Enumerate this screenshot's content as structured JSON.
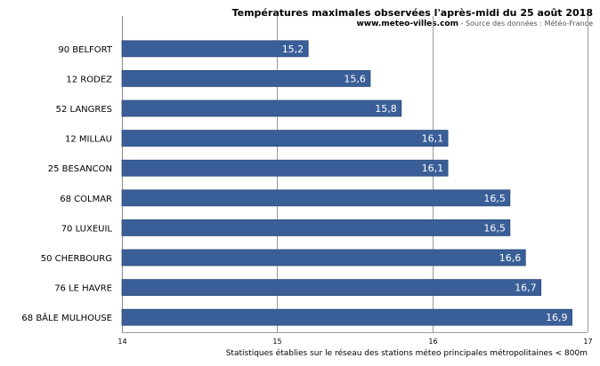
{
  "header": {
    "title": "Températures maximales observées l'après-midi du 25 août 2018",
    "site": "www.meteo-villes.com",
    "source": " - Source des données : Météo-France"
  },
  "footnote": "Statistiques établies sur le réseau des stations méteo principales métropolitaines < 800m",
  "chart_data": {
    "type": "bar",
    "orientation": "horizontal",
    "categories": [
      "90 BELFORT",
      "12 RODEZ",
      "52 LANGRES",
      "12 MILLAU",
      "25 BESANCON",
      "68 COLMAR",
      "70 LUXEUIL",
      "50 CHERBOURG",
      "76 LE HAVRE",
      "68 BÂLE MULHOUSE"
    ],
    "values": [
      15.2,
      15.6,
      15.8,
      16.1,
      16.1,
      16.5,
      16.5,
      16.6,
      16.7,
      16.9
    ],
    "value_labels": [
      "15,2",
      "15,6",
      "15,8",
      "16,1",
      "16,1",
      "16,5",
      "16,5",
      "16,6",
      "16,7",
      "16,9"
    ],
    "xlim": [
      14,
      17
    ],
    "xticks": [
      14,
      15,
      16,
      17
    ],
    "grid": true,
    "bar_color": "#3a5f98",
    "title": "Températures maximales observées l'après-midi du 25 août 2018"
  }
}
